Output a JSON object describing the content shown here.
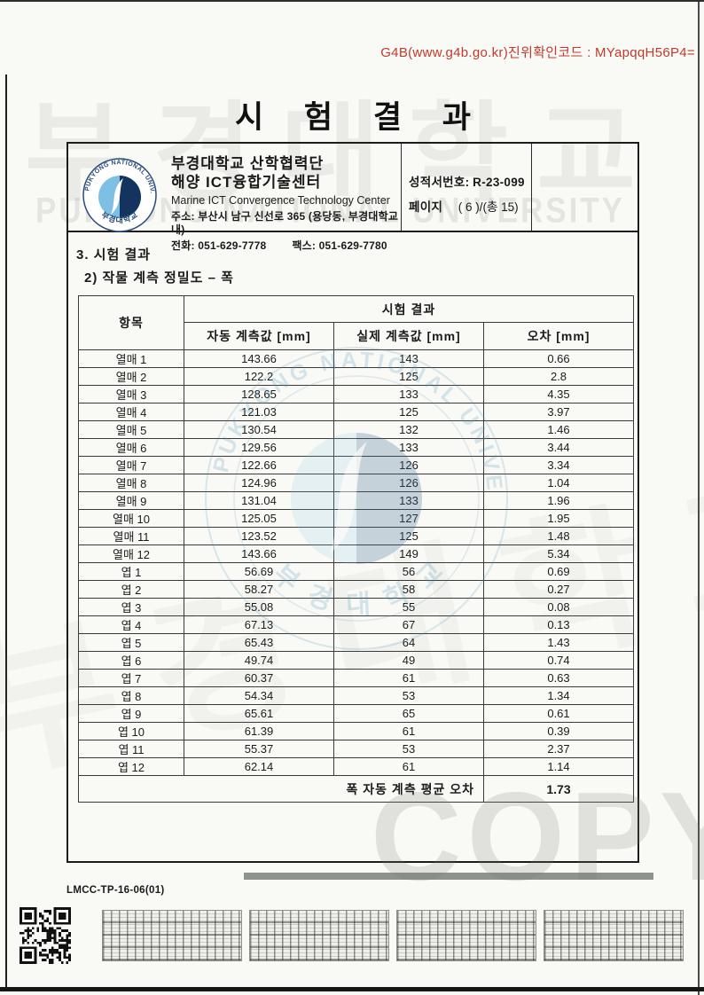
{
  "verification": {
    "code_line": "G4B(www.g4b.go.kr)진위확인코드 : MYapqqH56P4="
  },
  "title": "시 험 결 과",
  "header": {
    "org_line1": "부경대학교 산학협력단",
    "org_line2": "해양 ICT융합기술센터",
    "org_line_en": "Marine ICT Convergence Technology Center",
    "address": "주소: 부산시 남구 신선로 365 (용당동, 부경대학교 내)",
    "phone": "전화: 051-629-7778",
    "fax": "팩스: 051-629-7780",
    "report_no_label": "성적서번호:",
    "report_no": "R-23-099",
    "page_label": "페이지",
    "page_value": "( 6 )/(총 15)"
  },
  "section": {
    "heading": "3. 시험 결과",
    "subheading": "2) 작물 계측 정밀도 – 폭"
  },
  "table": {
    "col_item": "항목",
    "col_group": "시험 결과",
    "col_auto": "자동 계측값 [mm]",
    "col_actual": "실제 계측값 [mm]",
    "col_error": "오차 [mm]",
    "rows": [
      {
        "item": "열매 1",
        "auto": "143.66",
        "actual": "143",
        "error": "0.66"
      },
      {
        "item": "열매 2",
        "auto": "122.2",
        "actual": "125",
        "error": "2.8"
      },
      {
        "item": "열매 3",
        "auto": "128.65",
        "actual": "133",
        "error": "4.35"
      },
      {
        "item": "열매 4",
        "auto": "121.03",
        "actual": "125",
        "error": "3.97"
      },
      {
        "item": "열매 5",
        "auto": "130.54",
        "actual": "132",
        "error": "1.46"
      },
      {
        "item": "열매 6",
        "auto": "129.56",
        "actual": "133",
        "error": "3.44"
      },
      {
        "item": "열매 7",
        "auto": "122.66",
        "actual": "126",
        "error": "3.34"
      },
      {
        "item": "열매 8",
        "auto": "124.96",
        "actual": "126",
        "error": "1.04"
      },
      {
        "item": "열매 9",
        "auto": "131.04",
        "actual": "133",
        "error": "1.96"
      },
      {
        "item": "열매 10",
        "auto": "125.05",
        "actual": "127",
        "error": "1.95"
      },
      {
        "item": "열매 11",
        "auto": "123.52",
        "actual": "125",
        "error": "1.48"
      },
      {
        "item": "열매 12",
        "auto": "143.66",
        "actual": "149",
        "error": "5.34"
      },
      {
        "item": "엽 1",
        "auto": "56.69",
        "actual": "56",
        "error": "0.69"
      },
      {
        "item": "엽 2",
        "auto": "58.27",
        "actual": "58",
        "error": "0.27"
      },
      {
        "item": "엽 3",
        "auto": "55.08",
        "actual": "55",
        "error": "0.08"
      },
      {
        "item": "엽 4",
        "auto": "67.13",
        "actual": "67",
        "error": "0.13"
      },
      {
        "item": "엽 5",
        "auto": "65.43",
        "actual": "64",
        "error": "1.43"
      },
      {
        "item": "엽 6",
        "auto": "49.74",
        "actual": "49",
        "error": "0.74"
      },
      {
        "item": "엽 7",
        "auto": "60.37",
        "actual": "61",
        "error": "0.63"
      },
      {
        "item": "엽 8",
        "auto": "54.34",
        "actual": "53",
        "error": "1.34"
      },
      {
        "item": "엽 9",
        "auto": "65.61",
        "actual": "65",
        "error": "0.61"
      },
      {
        "item": "엽 10",
        "auto": "61.39",
        "actual": "61",
        "error": "0.39"
      },
      {
        "item": "엽 11",
        "auto": "55.37",
        "actual": "53",
        "error": "2.37"
      },
      {
        "item": "엽 12",
        "auto": "62.14",
        "actual": "61",
        "error": "1.14"
      }
    ],
    "summary_label": "폭 자동 계측 평균 오차",
    "summary_value": "1.73"
  },
  "footer": {
    "doc_code": "LMCC-TP-16-06(01)"
  },
  "watermarks": {
    "hangul_big": "부경대학교",
    "university_en": "PUKYONG NATIONAL UNIVERSITY",
    "copy": "COPY",
    "seal_top_text": "PUKYONG NATIONAL UNIVERSITY",
    "seal_bottom_text": "부 경 대 학 교"
  },
  "colors": {
    "verification_red": "#c23a2c",
    "seal_blue": "#4f93b8",
    "emblem_light_blue": "#7ec0e4",
    "emblem_navy": "#14335e",
    "gray_bar": "#8d938d"
  }
}
